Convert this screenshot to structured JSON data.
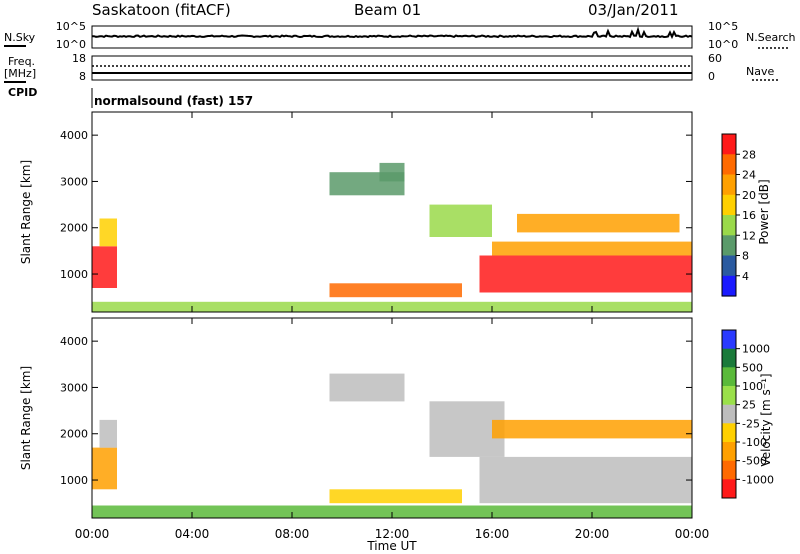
{
  "header": {
    "station": "Saskatoon (fitACF)",
    "beam": "Beam 01",
    "date": "03/Jan/2011"
  },
  "noise_panel": {
    "left_label": "N.Sky",
    "right_label": "N.Search",
    "left_ticks": [
      "10^5",
      "10^0"
    ],
    "right_ticks": [
      "10^5",
      "10^0"
    ]
  },
  "freq_panel": {
    "left_label_line1": "Freq.",
    "left_label_line2": "[MHz]",
    "right_label": "Nave",
    "left_ticks": [
      "18",
      "8"
    ],
    "right_ticks": [
      "60",
      "0"
    ]
  },
  "cpid": {
    "label": "CPID",
    "text": "normalsound (fast) 157"
  },
  "power_panel": {
    "ylabel": "Slant Range [km]",
    "colorbar_label": "Power [dB]",
    "colorbar_ticks": [
      "28",
      "24",
      "20",
      "16",
      "12",
      "8",
      "4"
    ],
    "colors": [
      "#ff1a1a",
      "#ff6a00",
      "#ffa000",
      "#ffd000",
      "#9ad94a",
      "#5a9a6a",
      "#2a5aa0",
      "#1a1aff"
    ]
  },
  "velocity_panel": {
    "ylabel": "Slant Range [km]",
    "colorbar_label": "Velocity [m s⁻¹]",
    "colorbar_ticks": [
      "1000",
      "500",
      "100",
      "25",
      "-25",
      "-100",
      "-500",
      "-1000"
    ],
    "colors": [
      "#2a3aff",
      "#1a7a3a",
      "#5aba3a",
      "#9ae04a",
      "#bdbdbd",
      "#ffd000",
      "#ffa000",
      "#ff6a00",
      "#ff1a1a"
    ]
  },
  "x_axis": {
    "label": "Time UT",
    "ticks": [
      "00:00",
      "04:00",
      "08:00",
      "12:00",
      "16:00",
      "20:00",
      "00:00"
    ]
  },
  "chart_data": [
    {
      "type": "heatmap",
      "title": "Power",
      "xlabel": "Time UT",
      "ylabel": "Slant Range [km]",
      "xlim": [
        0,
        24
      ],
      "ylim": [
        180,
        4500
      ],
      "yticks": [
        1000,
        2000,
        3000,
        4000
      ],
      "colorbar": {
        "label": "Power [dB]",
        "range": [
          0,
          30
        ],
        "ticks": [
          4,
          8,
          12,
          16,
          20,
          24,
          28
        ]
      },
      "regions": [
        {
          "t": [
            0.0,
            1.0
          ],
          "r": [
            700,
            1600
          ],
          "value": 28
        },
        {
          "t": [
            0.3,
            1.0
          ],
          "r": [
            1600,
            2200
          ],
          "value": 14
        },
        {
          "t": [
            9.5,
            14.8
          ],
          "r": [
            500,
            800
          ],
          "value": 24
        },
        {
          "t": [
            9.5,
            12.5
          ],
          "r": [
            2700,
            3200
          ],
          "value": 8
        },
        {
          "t": [
            11.5,
            12.5
          ],
          "r": [
            3000,
            3400
          ],
          "value": 6
        },
        {
          "t": [
            13.5,
            16.0
          ],
          "r": [
            1800,
            2500
          ],
          "value": 10
        },
        {
          "t": [
            15.5,
            24.0
          ],
          "r": [
            600,
            1400
          ],
          "value": 26
        },
        {
          "t": [
            16.0,
            24.0
          ],
          "r": [
            1400,
            1700
          ],
          "value": 20
        },
        {
          "t": [
            17.0,
            23.5
          ],
          "r": [
            1900,
            2300
          ],
          "value": 18
        },
        {
          "t": [
            0.0,
            24.0
          ],
          "r": [
            180,
            400
          ],
          "value": 10
        }
      ]
    },
    {
      "type": "heatmap",
      "title": "Velocity",
      "xlabel": "Time UT",
      "ylabel": "Slant Range [km]",
      "xlim": [
        0,
        24
      ],
      "ylim": [
        180,
        4500
      ],
      "yticks": [
        1000,
        2000,
        3000,
        4000
      ],
      "colorbar": {
        "label": "Velocity [m s⁻¹]",
        "ticks": [
          1000,
          500,
          100,
          25,
          -25,
          -100,
          -500,
          -1000
        ]
      },
      "regions": [
        {
          "t": [
            0.0,
            1.0
          ],
          "r": [
            800,
            1700
          ],
          "value": -500
        },
        {
          "t": [
            0.3,
            1.0
          ],
          "r": [
            1700,
            2300
          ],
          "value": 0
        },
        {
          "t": [
            9.5,
            14.8
          ],
          "r": [
            500,
            800
          ],
          "value": -100
        },
        {
          "t": [
            9.5,
            12.5
          ],
          "r": [
            2700,
            3300
          ],
          "value": 0
        },
        {
          "t": [
            13.5,
            16.5
          ],
          "r": [
            1500,
            2700
          ],
          "value": 0
        },
        {
          "t": [
            15.5,
            24.0
          ],
          "r": [
            500,
            1500
          ],
          "value": 0
        },
        {
          "t": [
            16.0,
            24.0
          ],
          "r": [
            1900,
            2300
          ],
          "value": -300
        },
        {
          "t": [
            0.0,
            24.0
          ],
          "r": [
            180,
            450
          ],
          "value": 100
        }
      ]
    }
  ]
}
